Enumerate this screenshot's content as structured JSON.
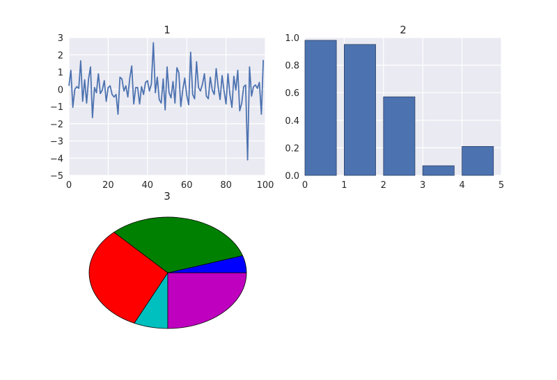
{
  "figure": {
    "background": "#ffffff"
  },
  "colors": {
    "line": "#4c72b0",
    "bar": "#4c72b0",
    "bar_edge": "#2a3f66",
    "panel": "#eaeaf2",
    "text": "#262626"
  },
  "chart_data": [
    {
      "type": "line",
      "title": "1",
      "xlabel": "",
      "ylabel": "",
      "xlim": [
        0,
        100
      ],
      "ylim": [
        -5,
        3
      ],
      "grid": true,
      "x_ticks": [
        "0",
        "20",
        "40",
        "60",
        "80",
        "100"
      ],
      "y_ticks": [
        "3",
        "2",
        "1",
        "0",
        "−1",
        "−2",
        "−3",
        "−4",
        "−5"
      ],
      "series": [
        {
          "x": [
            0,
            1,
            2,
            3,
            4,
            5,
            6,
            7,
            8,
            9,
            10,
            11,
            12,
            13,
            14,
            15,
            16,
            17,
            18,
            19,
            20,
            21,
            22,
            23,
            24,
            25,
            26,
            27,
            28,
            29,
            30,
            31,
            32,
            33,
            34,
            35,
            36,
            37,
            38,
            39,
            40,
            41,
            42,
            43,
            44,
            45,
            46,
            47,
            48,
            49,
            50,
            51,
            52,
            53,
            54,
            55,
            56,
            57,
            58,
            59,
            60,
            61,
            62,
            63,
            64,
            65,
            66,
            67,
            68,
            69,
            70,
            71,
            72,
            73,
            74,
            75,
            76,
            77,
            78,
            79,
            80,
            81,
            82,
            83,
            84,
            85,
            86,
            87,
            88,
            89,
            90,
            91,
            92,
            93,
            94,
            95,
            96,
            97,
            98,
            99
          ],
          "values": [
            0.2,
            1.1,
            -1.05,
            0.0,
            0.15,
            0.05,
            1.65,
            -0.7,
            0.55,
            -0.8,
            0.6,
            1.3,
            -1.65,
            0.1,
            -0.2,
            0.9,
            -0.25,
            -0.05,
            0.5,
            -0.7,
            0.1,
            0.2,
            -0.3,
            -0.45,
            -0.3,
            -1.45,
            0.7,
            0.6,
            -0.1,
            0.2,
            -0.45,
            0.65,
            1.35,
            -0.85,
            0.1,
            0.1,
            -0.85,
            0.15,
            -0.3,
            0.4,
            0.5,
            -0.1,
            0.3,
            2.7,
            -0.2,
            0.7,
            -0.6,
            -0.8,
            0.6,
            -1.2,
            1.3,
            -0.2,
            -0.5,
            0.45,
            -0.8,
            1.25,
            0.95,
            -1.0,
            0.0,
            0.65,
            -0.35,
            -0.9,
            2.15,
            -0.3,
            -0.55,
            1.6,
            0.1,
            -0.1,
            0.3,
            0.9,
            -0.4,
            -0.55,
            0.7,
            -0.05,
            -0.3,
            1.2,
            0.15,
            -0.6,
            0.8,
            -0.1,
            -0.85,
            0.9,
            -0.3,
            -1.05,
            0.75,
            -0.05,
            1.1,
            -1.25,
            -0.8,
            0.15,
            0.25,
            -4.1,
            1.3,
            -0.4,
            0.15,
            0.25,
            0.05,
            0.4,
            -1.45,
            1.7
          ]
        }
      ]
    },
    {
      "type": "bar",
      "title": "2",
      "xlabel": "",
      "ylabel": "",
      "xlim": [
        0,
        5
      ],
      "ylim": [
        0,
        1.0
      ],
      "grid": true,
      "x_ticks": [
        "0",
        "1",
        "2",
        "3",
        "4",
        "5"
      ],
      "y_ticks": [
        "1.0",
        "0.8",
        "0.6",
        "0.4",
        "0.2",
        "0.0"
      ],
      "x": [
        0,
        1,
        2,
        3,
        4
      ],
      "values": [
        0.98,
        0.95,
        0.57,
        0.07,
        0.21
      ]
    },
    {
      "type": "pie",
      "title": "3",
      "slices": [
        {
          "value": 0.05,
          "color": "#0000ff"
        },
        {
          "value": 0.32,
          "color": "#008000"
        },
        {
          "value": 0.31,
          "color": "#ff0000"
        },
        {
          "value": 0.07,
          "color": "#00bfbf"
        },
        {
          "value": 0.25,
          "color": "#bf00bf"
        }
      ]
    }
  ]
}
